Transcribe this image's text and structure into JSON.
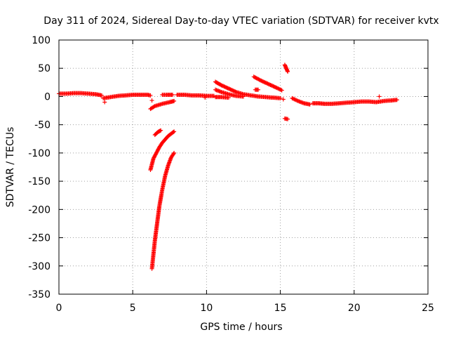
{
  "chart_data": {
    "type": "scatter",
    "title": "Day 311 of 2024, Sidereal Day-to-day VTEC variation (SDTVAR) for receiver kvtx",
    "xlabel": "GPS time / hours",
    "ylabel": "SDTVAR / TECUs",
    "xlim": [
      0,
      25
    ],
    "ylim": [
      -350,
      100
    ],
    "xticks": [
      "0",
      "5",
      "10",
      "15",
      "20",
      "25"
    ],
    "yticks": [
      "100",
      "50",
      "0",
      "-50",
      "-100",
      "-150",
      "-200",
      "-250",
      "-300",
      "-350"
    ],
    "grid": true,
    "marker": "+",
    "color": "#ff0000",
    "segments": [
      {
        "x": [
          0.0,
          0.5,
          1.0,
          1.5,
          2.0,
          2.5,
          2.9
        ],
        "y": [
          5,
          5,
          6,
          6,
          5,
          4,
          2
        ]
      },
      {
        "x": [
          3.0,
          3.5,
          4.0,
          4.5,
          5.0,
          5.5,
          6.0,
          6.2
        ],
        "y": [
          -3,
          -1,
          1,
          2,
          3,
          3,
          3,
          2
        ]
      },
      {
        "x": [
          6.2,
          6.5,
          7.0,
          7.5,
          7.8
        ],
        "y": [
          -22,
          -17,
          -13,
          -10,
          -8
        ]
      },
      {
        "x": [
          6.2,
          6.4,
          6.6,
          6.8,
          7.0,
          7.2,
          7.4,
          7.6,
          7.8
        ],
        "y": [
          -130,
          -110,
          -100,
          -90,
          -82,
          -76,
          -70,
          -66,
          -62
        ]
      },
      {
        "x": [
          6.5,
          6.7,
          6.9
        ],
        "y": [
          -68,
          -63,
          -60
        ]
      },
      {
        "x": [
          6.3,
          6.4,
          6.5,
          6.6,
          6.7,
          6.8,
          7.0,
          7.2,
          7.4,
          7.6,
          7.8
        ],
        "y": [
          -305,
          -280,
          -255,
          -235,
          -215,
          -195,
          -165,
          -140,
          -122,
          -108,
          -100
        ]
      },
      {
        "x": [
          7.0,
          7.3,
          7.7
        ],
        "y": [
          3,
          3,
          3
        ]
      },
      {
        "x": [
          8.0,
          8.5,
          9.0,
          9.5,
          10.0,
          10.5
        ],
        "y": [
          3,
          3,
          2,
          2,
          1,
          1
        ]
      },
      {
        "x": [
          10.6,
          11.0,
          11.5,
          12.0,
          12.5,
          13.0,
          13.5,
          14.0,
          14.5,
          15.0
        ],
        "y": [
          26,
          20,
          14,
          8,
          4,
          2,
          0,
          -1,
          -2,
          -3
        ]
      },
      {
        "x": [
          10.6,
          11.0,
          11.5,
          12.0,
          12.5
        ],
        "y": [
          12,
          8,
          4,
          1,
          0
        ]
      },
      {
        "x": [
          10.6,
          11.0,
          11.5
        ],
        "y": [
          -1,
          -1,
          -2
        ]
      },
      {
        "x": [
          13.2,
          13.7,
          14.2,
          14.7,
          15.1
        ],
        "y": [
          35,
          28,
          22,
          16,
          11
        ]
      },
      {
        "x": [
          13.3,
          13.5
        ],
        "y": [
          12,
          12
        ]
      },
      {
        "x": [
          15.3,
          15.4,
          15.5
        ],
        "y": [
          56,
          50,
          44
        ]
      },
      {
        "x": [
          15.3,
          15.5
        ],
        "y": [
          -39,
          -40
        ]
      },
      {
        "x": [
          15.8,
          16.2,
          16.6,
          17.0
        ],
        "y": [
          -3,
          -8,
          -12,
          -14
        ]
      },
      {
        "x": [
          17.2,
          17.6,
          18.0,
          18.5,
          19.0,
          19.5,
          20.0,
          20.5,
          21.0,
          21.5,
          22.0,
          22.5,
          22.9
        ],
        "y": [
          -12,
          -12,
          -13,
          -13,
          -12,
          -11,
          -10,
          -9,
          -9,
          -10,
          -8,
          -7,
          -6
        ]
      }
    ],
    "isolated_points": [
      {
        "x": 3.1,
        "y": -10
      },
      {
        "x": 6.3,
        "y": -7
      },
      {
        "x": 9.9,
        "y": -2
      },
      {
        "x": 15.2,
        "y": -5
      },
      {
        "x": 21.7,
        "y": 0
      }
    ]
  }
}
